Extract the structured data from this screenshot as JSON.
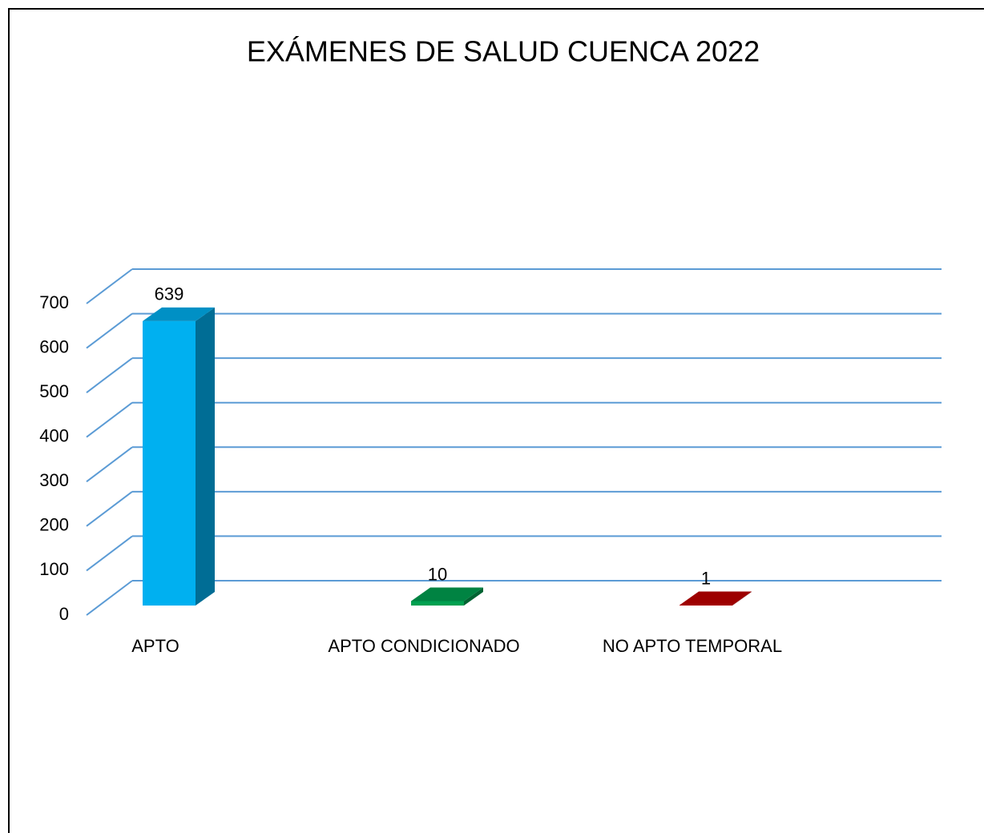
{
  "chart_data": {
    "type": "bar3d",
    "title": "EXÁMENES DE SALUD CUENCA 2022",
    "categories": [
      "APTO",
      "APTO CONDICIONADO",
      "NO APTO TEMPORAL"
    ],
    "values": [
      639,
      10,
      1
    ],
    "colors": [
      "#00b0f0",
      "#00a050",
      "#c00000"
    ],
    "ylim": [
      0,
      700
    ],
    "yticks": [
      0,
      100,
      200,
      300,
      400,
      500,
      600,
      700
    ],
    "grid": true,
    "grid_color": "#5b9bd5"
  }
}
